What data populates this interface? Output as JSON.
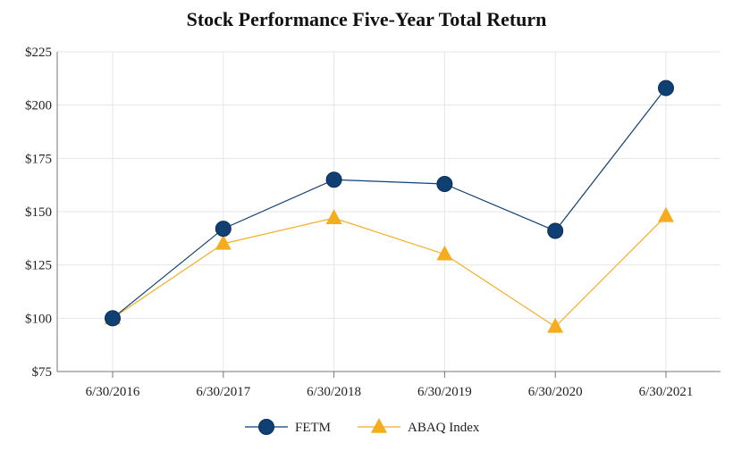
{
  "chart_data": {
    "type": "line",
    "title": "Stock Performance Five-Year Total Return",
    "xlabel": "",
    "ylabel": "",
    "categories": [
      "6/30/2016",
      "6/30/2017",
      "6/30/2018",
      "6/30/2019",
      "6/30/2020",
      "6/30/2021"
    ],
    "ylim": [
      75,
      225
    ],
    "yticks": [
      75,
      100,
      125,
      150,
      175,
      200,
      225
    ],
    "ytick_labels": [
      "$75",
      "$100",
      "$125",
      "$150",
      "$175",
      "$200",
      "$225"
    ],
    "grid": true,
    "legend_position": "bottom",
    "series": [
      {
        "name": "FETM",
        "values": [
          100,
          142,
          165,
          163,
          141,
          208
        ],
        "color": "#0f3f73",
        "marker": "circle"
      },
      {
        "name": "ABAQ Index",
        "values": [
          100,
          135,
          147,
          130,
          96,
          148
        ],
        "color": "#f5ad1f",
        "marker": "triangle"
      }
    ]
  }
}
